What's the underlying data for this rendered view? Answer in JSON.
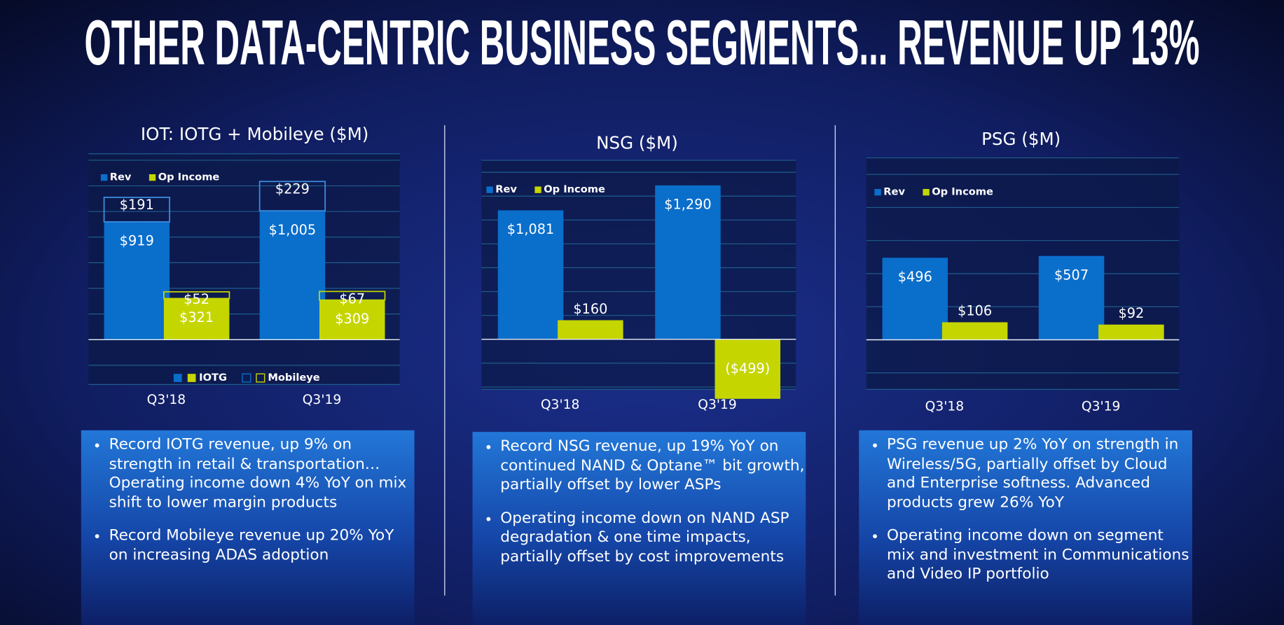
{
  "title": "OTHER DATA-CENTRIC BUSINESS SEGMENTS... REVENUE UP 13%",
  "chart_data": [
    {
      "type": "bar",
      "title": "IOT: IOTG + Mobileye ($M)",
      "categories": [
        "Q3'18",
        "Q3'19"
      ],
      "series": [
        {
          "name": "Rev",
          "color": "#0a6ecb",
          "values": [
            919,
            1005
          ],
          "value_labels": [
            "$919",
            "$1,005"
          ],
          "stack_values": [
            191,
            229
          ],
          "stack_labels": [
            "$191",
            "$229"
          ]
        },
        {
          "name": "Op Income",
          "color": "#c5d500",
          "values": [
            321,
            309
          ],
          "value_labels": [
            "$321",
            "$309"
          ],
          "stack_values": [
            52,
            67
          ],
          "stack_labels": [
            "$52",
            "$67"
          ]
        }
      ],
      "stack_names": [
        "IOTG",
        "Mobileye"
      ],
      "ylim": [
        -350,
        1450
      ],
      "yticks": [
        -200,
        0,
        200,
        400,
        600,
        800,
        1000,
        1200,
        1400
      ],
      "grid": true,
      "bullets": [
        "Record IOTG revenue, up 9%  on strength  in retail & transportation… Operating income down 4% YoY on mix shift to lower margin products",
        "Record Mobileye revenue up 20% YoY on increasing ADAS adoption"
      ]
    },
    {
      "type": "bar",
      "title": "NSG ($M)",
      "categories": [
        "Q3'18",
        "Q3'19"
      ],
      "series": [
        {
          "name": "Rev",
          "color": "#0a6ecb",
          "values": [
            1081,
            1290
          ],
          "value_labels": [
            "$1,081",
            "$1,290"
          ]
        },
        {
          "name": "Op Income",
          "color": "#c5d500",
          "values": [
            160,
            -499
          ],
          "value_labels": [
            "$160",
            "($499)"
          ]
        }
      ],
      "ylim": [
        -420,
        1500
      ],
      "yticks": [
        -400,
        -200,
        0,
        200,
        400,
        600,
        800,
        1000,
        1200,
        1400
      ],
      "grid": true,
      "bullets": [
        "Record NSG revenue, up 19% YoY on continued NAND & Optane™ bit growth, partially offset by lower ASPs",
        "Operating income down on NAND ASP degradation & one time impacts, partially offset by cost improvements"
      ]
    },
    {
      "type": "bar",
      "title": "PSG ($M)",
      "categories": [
        "Q3'18",
        "Q3'19"
      ],
      "series": [
        {
          "name": "Rev",
          "color": "#0a6ecb",
          "values": [
            496,
            507
          ],
          "value_labels": [
            "$496",
            "$507"
          ]
        },
        {
          "name": "Op Income",
          "color": "#c5d500",
          "values": [
            106,
            92
          ],
          "value_labels": [
            "$106",
            "$92"
          ]
        }
      ],
      "ylim": [
        -300,
        1100
      ],
      "yticks": [
        -200,
        0,
        200,
        400,
        600,
        800,
        1000
      ],
      "grid": true,
      "bullets": [
        "PSG revenue up 2% YoY on strength in Wireless/5G, partially offset by Cloud and Enterprise softness. Advanced products grew 26% YoY",
        "Operating income down on segment mix and investment in Communications and Video IP portfolio"
      ]
    }
  ]
}
